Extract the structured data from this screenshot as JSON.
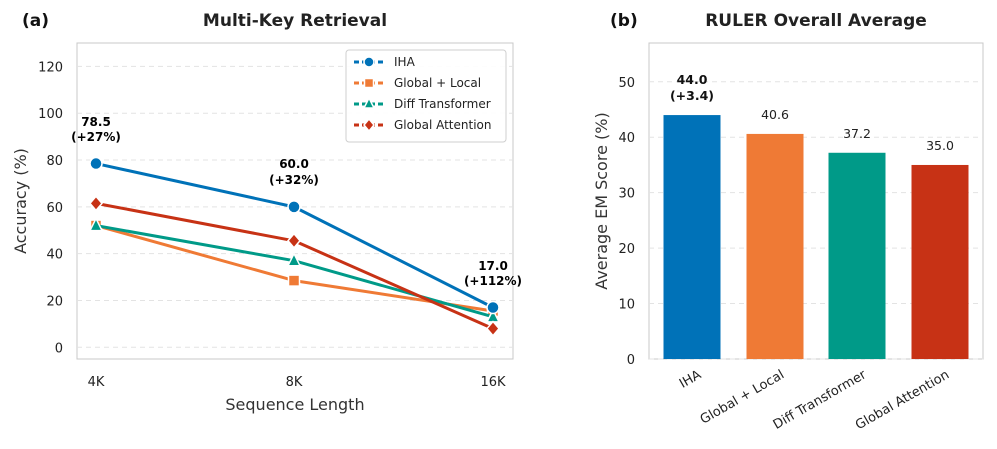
{
  "panels": {
    "a": "(a)",
    "b": "(b)"
  },
  "chart_data": [
    {
      "type": "line",
      "title": "Multi-Key Retrieval",
      "xlabel": "Sequence Length",
      "ylabel": "Accuracy (%)",
      "categories": [
        "4K",
        "8K",
        "16K"
      ],
      "ylim": [
        -5,
        130
      ],
      "yticks": [
        0,
        20,
        40,
        60,
        80,
        100,
        120
      ],
      "grid": "y-dashed",
      "legend_position": "top-right",
      "series": [
        {
          "name": "IHA",
          "values": [
            78.5,
            60.0,
            17.0
          ],
          "color": "#0072b8",
          "marker": "circle"
        },
        {
          "name": "Global + Local",
          "values": [
            52,
            28.5,
            15.5
          ],
          "color": "#ef7a35",
          "marker": "square"
        },
        {
          "name": "Diff Transformer",
          "values": [
            52,
            37,
            13
          ],
          "color": "#009a88",
          "marker": "triangle"
        },
        {
          "name": "Global Attention",
          "values": [
            61.5,
            45.5,
            8
          ],
          "color": "#c73215",
          "marker": "diamond"
        }
      ],
      "annotations": [
        {
          "x": "4K",
          "value_text": "78.5",
          "delta_text": "(+27%)"
        },
        {
          "x": "8K",
          "value_text": "60.0",
          "delta_text": "(+32%)"
        },
        {
          "x": "16K",
          "value_text": "17.0",
          "delta_text": "(+112%)"
        }
      ]
    },
    {
      "type": "bar",
      "title": "RULER Overall Average",
      "xlabel": "",
      "ylabel": "Average EM Score (%)",
      "categories": [
        "IHA",
        "Global + Local",
        "Diff Transformer",
        "Global Attention"
      ],
      "values": [
        44.0,
        40.6,
        37.2,
        35.0
      ],
      "colors": [
        "#0072b8",
        "#ef7a35",
        "#009a88",
        "#c73215"
      ],
      "ylim": [
        0,
        57
      ],
      "yticks": [
        0,
        10,
        20,
        30,
        40,
        50
      ],
      "grid": "y-dashed",
      "bar_labels": [
        "44.0",
        "40.6",
        "37.2",
        "35.0"
      ],
      "highlight_delta": "(+3.4)"
    }
  ]
}
